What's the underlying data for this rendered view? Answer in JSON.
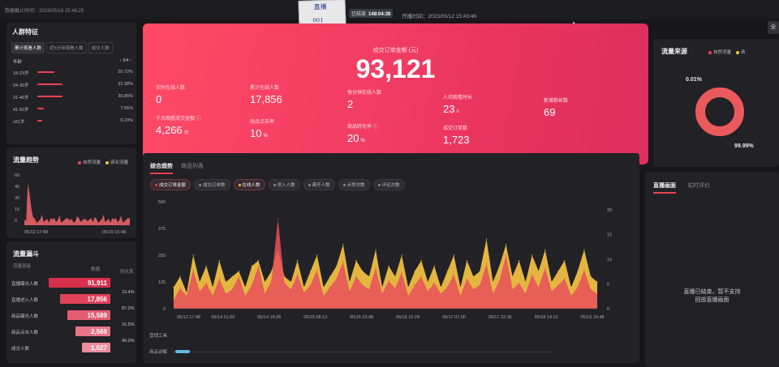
{
  "top": {
    "deadline": "数据截止时间：2023/05/19 15:48:25",
    "note_line1": "直播",
    "note_line2": "001",
    "elapsed_label": "已结束",
    "elapsed_value": "148:04:39",
    "start_time": "开播时间：2023/05/12 15:43:46",
    "corner_label": "全"
  },
  "crowd": {
    "title": "人群特征",
    "tabs": [
      "累计观看人数",
      "近5分钟观看人数",
      "成交人数"
    ],
    "header_label": "年龄",
    "pager": "3/4",
    "rows": [
      {
        "label": "18-23岁",
        "pct": "20.72%",
        "value": 0.2072
      },
      {
        "label": "24-30岁",
        "pct": "31.38%",
        "value": 0.3138
      },
      {
        "label": "31-40岁",
        "pct": "30.85%",
        "value": 0.3085
      },
      {
        "label": "41-50岁",
        "pct": "7.65%",
        "value": 0.0765
      },
      {
        "label": "≥51岁",
        "pct": "6.23%",
        "value": 0.0623
      }
    ]
  },
  "trend_small": {
    "title": "流量趋势",
    "legend": [
      "自然流量",
      "商业流量"
    ],
    "yticks": [
      "60",
      "45",
      "30",
      "15",
      "0"
    ],
    "xticks": [
      "05/12 17:48",
      "05/19 15:48"
    ]
  },
  "funnel": {
    "title": "流量漏斗",
    "col_flow": "流量层级",
    "col_count": "数据",
    "col_conv": "转化率",
    "rows": [
      {
        "label": "直播曝光人数",
        "value": "91,911",
        "fraction": 1.0
      },
      {
        "label": "直播进入人数",
        "value": "17,856",
        "fraction": 0.82
      },
      {
        "label": "商品曝光人数",
        "value": "15,589",
        "fraction": 0.7
      },
      {
        "label": "商品点击人数",
        "value": "2,569",
        "fraction": 0.56
      },
      {
        "label": "成交人数",
        "value": "1,027",
        "fraction": 0.46
      }
    ],
    "conversions": [
      "19.4%",
      "87.3%",
      "16.5%",
      "40.0%"
    ]
  },
  "hero": {
    "title": "成交订单金额 (元)",
    "value": "93,121",
    "metrics": [
      {
        "label": "实时在线人数",
        "value": "0",
        "unit": ""
      },
      {
        "label": "累计在线人数",
        "value": "17,856",
        "unit": ""
      },
      {
        "label": "每分钟在线人数",
        "value": "2",
        "unit": ""
      },
      {
        "label": "人均观看时长",
        "value": "23",
        "unit": "s"
      },
      {
        "label": "新增粉丝数",
        "value": "69",
        "unit": ""
      },
      {
        "label": "千次观看成交金额 ⓘ",
        "value": "4,266",
        "unit": "元"
      },
      {
        "label": "商品点击率",
        "value": "10",
        "unit": "%"
      },
      {
        "label": "商品转化率 ⓘ",
        "value": "20",
        "unit": "%"
      },
      {
        "label": "成交订单数",
        "value": "1,723",
        "unit": ""
      }
    ]
  },
  "source": {
    "title": "流量来源",
    "legend": [
      "自然流量",
      "商"
    ],
    "pct_small": "0.01%",
    "pct_large": "99.99%",
    "fraction_natural": 0.9999
  },
  "main": {
    "tab_active": "综合趋势",
    "tab_other": "商品列表",
    "chips": [
      {
        "label": "成交订单金额",
        "on": true,
        "color": "#e84350"
      },
      {
        "label": "成交订单数",
        "on": false,
        "color": "#888888"
      },
      {
        "label": "在线人数",
        "on": true,
        "color": "#f5c242"
      },
      {
        "label": "进入人数",
        "on": false,
        "color": "#888888"
      },
      {
        "label": "离开人数",
        "on": false,
        "color": "#888888"
      },
      {
        "label": "点赞次数",
        "on": false,
        "color": "#888888"
      },
      {
        "label": "评论次数",
        "on": false,
        "color": "#888888"
      }
    ],
    "extra_label_1": "营销工具",
    "extra_label_2": "商品讲解"
  },
  "chart_data": {
    "type": "area",
    "left_yticks": [
      "500",
      "375",
      "250",
      "125",
      "0"
    ],
    "right_yticks": [
      "20",
      "15",
      "10",
      "5",
      "0"
    ],
    "ylim_left": [
      0,
      500
    ],
    "ylim_right": [
      0,
      20
    ],
    "xticks": [
      "05/12 17:48",
      "05/14 01:00",
      "05/14 16:36",
      "05/15 08:12",
      "05/15 23:48",
      "05/16 15:24",
      "05/17 07:00",
      "05/17 22:36",
      "05/18 14:12",
      "05/19 15:48"
    ],
    "series": [
      {
        "name": "成交订单金额",
        "color": "#e8505a",
        "values": [
          40,
          95,
          60,
          180,
          80,
          120,
          60,
          140,
          70,
          90,
          150,
          60,
          110,
          200,
          70,
          130,
          420,
          120,
          90,
          160,
          75,
          110,
          180,
          60,
          100,
          140,
          220,
          80,
          150,
          110,
          90,
          190,
          70,
          130,
          95,
          170,
          60,
          110,
          150,
          80,
          120,
          70,
          100,
          160,
          60,
          140,
          90,
          110,
          210,
          70,
          130,
          250,
          90,
          120,
          70,
          160,
          100,
          190,
          80,
          110,
          140,
          60,
          100,
          180,
          90,
          70
        ]
      },
      {
        "name": "在线人数",
        "color": "#f5c242",
        "values": [
          4,
          6,
          3,
          10,
          5,
          8,
          4,
          9,
          5,
          6,
          7,
          4,
          8,
          9,
          5,
          7,
          11,
          6,
          5,
          9,
          4,
          7,
          10,
          4,
          6,
          8,
          12,
          5,
          9,
          7,
          6,
          11,
          4,
          8,
          6,
          10,
          4,
          7,
          9,
          5,
          8,
          4,
          7,
          10,
          4,
          9,
          6,
          7,
          13,
          5,
          8,
          12,
          6,
          9,
          5,
          10,
          7,
          11,
          5,
          7,
          9,
          4,
          7,
          11,
          6,
          5
        ]
      }
    ]
  },
  "live": {
    "tab_active": "直播画面",
    "tab_other": "实时评价",
    "message_line1": "直播已结束，暂不支持",
    "message_line2": "回放直播画面"
  }
}
